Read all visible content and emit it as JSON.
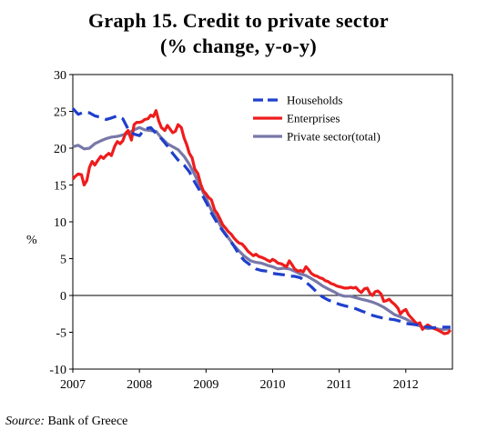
{
  "header": {
    "title": "Graph 15. Credit to private sector",
    "subtitle": "(% change, y-o-y)"
  },
  "footer": {
    "source_label": "Source:",
    "source_text": "Bank of Greece"
  },
  "chart_data": {
    "type": "line",
    "title": "Graph 15. Credit to private sector",
    "subtitle": "(% change, y-o-y)",
    "xlabel": "",
    "ylabel": "%",
    "ylim": [
      -10,
      30
    ],
    "xlim": [
      2007.0,
      2012.7
    ],
    "yticks": [
      -10,
      -5,
      0,
      5,
      10,
      15,
      20,
      25,
      30
    ],
    "xticks": [
      "2007",
      "2008",
      "2009",
      "2010",
      "2011",
      "2012"
    ],
    "grid": false,
    "zero_line": true,
    "legend_position": "top-right",
    "series": [
      {
        "name": "Households",
        "color": "#1f3fcc",
        "style": "dashed",
        "points": [
          [
            2007.0,
            25.4
          ],
          [
            2007.08,
            24.6
          ],
          [
            2007.17,
            24.9
          ],
          [
            2007.25,
            24.8
          ],
          [
            2007.33,
            24.4
          ],
          [
            2007.42,
            24.2
          ],
          [
            2007.5,
            23.9
          ],
          [
            2007.58,
            24.1
          ],
          [
            2007.67,
            24.4
          ],
          [
            2007.75,
            24.0
          ],
          [
            2007.83,
            22.6
          ],
          [
            2007.92,
            21.9
          ],
          [
            2008.0,
            21.7
          ],
          [
            2008.08,
            22.6
          ],
          [
            2008.17,
            22.8
          ],
          [
            2008.25,
            22.0
          ],
          [
            2008.33,
            21.3
          ],
          [
            2008.42,
            20.3
          ],
          [
            2008.5,
            19.3
          ],
          [
            2008.58,
            18.4
          ],
          [
            2008.67,
            17.7
          ],
          [
            2008.75,
            16.8
          ],
          [
            2008.83,
            15.4
          ],
          [
            2008.92,
            14.0
          ],
          [
            2009.0,
            12.7
          ],
          [
            2009.08,
            11.2
          ],
          [
            2009.17,
            9.8
          ],
          [
            2009.25,
            8.8
          ],
          [
            2009.33,
            7.8
          ],
          [
            2009.42,
            6.7
          ],
          [
            2009.5,
            5.5
          ],
          [
            2009.58,
            4.7
          ],
          [
            2009.67,
            4.1
          ],
          [
            2009.75,
            3.6
          ],
          [
            2009.83,
            3.4
          ],
          [
            2009.92,
            3.3
          ],
          [
            2010.0,
            3.0
          ],
          [
            2010.08,
            2.9
          ],
          [
            2010.17,
            2.8
          ],
          [
            2010.25,
            2.6
          ],
          [
            2010.33,
            2.6
          ],
          [
            2010.42,
            2.4
          ],
          [
            2010.5,
            1.8
          ],
          [
            2010.58,
            1.2
          ],
          [
            2010.67,
            0.4
          ],
          [
            2010.75,
            -0.2
          ],
          [
            2010.83,
            -0.6
          ],
          [
            2010.92,
            -0.9
          ],
          [
            2011.0,
            -1.2
          ],
          [
            2011.08,
            -1.4
          ],
          [
            2011.17,
            -1.6
          ],
          [
            2011.25,
            -1.8
          ],
          [
            2011.33,
            -2.1
          ],
          [
            2011.42,
            -2.4
          ],
          [
            2011.5,
            -2.7
          ],
          [
            2011.58,
            -2.9
          ],
          [
            2011.67,
            -3.1
          ],
          [
            2011.75,
            -3.2
          ],
          [
            2011.83,
            -3.3
          ],
          [
            2011.92,
            -3.5
          ],
          [
            2012.0,
            -3.8
          ],
          [
            2012.08,
            -3.9
          ],
          [
            2012.17,
            -4.0
          ],
          [
            2012.25,
            -4.2
          ],
          [
            2012.33,
            -4.3
          ],
          [
            2012.42,
            -4.4
          ],
          [
            2012.5,
            -4.3
          ],
          [
            2012.58,
            -4.3
          ],
          [
            2012.67,
            -4.3
          ]
        ]
      },
      {
        "name": "Enterprises",
        "color": "#ee1c1c",
        "style": "solid",
        "points": [
          [
            2007.0,
            15.8
          ],
          [
            2007.04,
            16.2
          ],
          [
            2007.08,
            16.5
          ],
          [
            2007.13,
            16.4
          ],
          [
            2007.17,
            15.0
          ],
          [
            2007.21,
            15.6
          ],
          [
            2007.25,
            17.4
          ],
          [
            2007.29,
            18.2
          ],
          [
            2007.33,
            17.7
          ],
          [
            2007.38,
            18.4
          ],
          [
            2007.42,
            18.9
          ],
          [
            2007.46,
            18.6
          ],
          [
            2007.5,
            19.0
          ],
          [
            2007.54,
            19.3
          ],
          [
            2007.58,
            19.0
          ],
          [
            2007.63,
            20.3
          ],
          [
            2007.67,
            20.9
          ],
          [
            2007.71,
            20.6
          ],
          [
            2007.75,
            21.0
          ],
          [
            2007.79,
            22.0
          ],
          [
            2007.83,
            22.4
          ],
          [
            2007.88,
            21.1
          ],
          [
            2007.92,
            23.2
          ],
          [
            2007.96,
            23.5
          ],
          [
            2008.0,
            23.5
          ],
          [
            2008.04,
            23.6
          ],
          [
            2008.08,
            23.9
          ],
          [
            2008.13,
            24.0
          ],
          [
            2008.17,
            24.5
          ],
          [
            2008.21,
            24.3
          ],
          [
            2008.25,
            25.1
          ],
          [
            2008.29,
            23.7
          ],
          [
            2008.33,
            22.8
          ],
          [
            2008.38,
            22.4
          ],
          [
            2008.42,
            23.1
          ],
          [
            2008.46,
            22.6
          ],
          [
            2008.5,
            22.1
          ],
          [
            2008.54,
            22.3
          ],
          [
            2008.58,
            23.2
          ],
          [
            2008.63,
            22.8
          ],
          [
            2008.67,
            21.4
          ],
          [
            2008.71,
            20.5
          ],
          [
            2008.75,
            19.3
          ],
          [
            2008.79,
            18.7
          ],
          [
            2008.83,
            17.2
          ],
          [
            2008.88,
            16.5
          ],
          [
            2008.92,
            15.1
          ],
          [
            2008.96,
            14.2
          ],
          [
            2009.0,
            13.8
          ],
          [
            2009.04,
            13.3
          ],
          [
            2009.08,
            13.0
          ],
          [
            2009.13,
            11.6
          ],
          [
            2009.17,
            11.1
          ],
          [
            2009.21,
            10.4
          ],
          [
            2009.25,
            9.6
          ],
          [
            2009.29,
            9.2
          ],
          [
            2009.33,
            8.7
          ],
          [
            2009.38,
            8.3
          ],
          [
            2009.42,
            7.8
          ],
          [
            2009.46,
            7.4
          ],
          [
            2009.5,
            7.1
          ],
          [
            2009.54,
            7.0
          ],
          [
            2009.58,
            6.6
          ],
          [
            2009.63,
            6.0
          ],
          [
            2009.67,
            5.7
          ],
          [
            2009.71,
            5.4
          ],
          [
            2009.75,
            5.6
          ],
          [
            2009.79,
            5.3
          ],
          [
            2009.83,
            5.2
          ],
          [
            2009.88,
            5.0
          ],
          [
            2009.92,
            4.8
          ],
          [
            2009.96,
            4.6
          ],
          [
            2010.0,
            4.9
          ],
          [
            2010.04,
            4.7
          ],
          [
            2010.08,
            4.4
          ],
          [
            2010.13,
            4.3
          ],
          [
            2010.17,
            4.1
          ],
          [
            2010.21,
            3.9
          ],
          [
            2010.25,
            4.7
          ],
          [
            2010.29,
            4.2
          ],
          [
            2010.33,
            3.6
          ],
          [
            2010.38,
            3.3
          ],
          [
            2010.42,
            3.4
          ],
          [
            2010.46,
            3.2
          ],
          [
            2010.5,
            3.9
          ],
          [
            2010.54,
            3.5
          ],
          [
            2010.58,
            3.0
          ],
          [
            2010.63,
            2.7
          ],
          [
            2010.67,
            2.6
          ],
          [
            2010.71,
            2.4
          ],
          [
            2010.75,
            2.3
          ],
          [
            2010.79,
            2.0
          ],
          [
            2010.83,
            1.9
          ],
          [
            2010.88,
            1.6
          ],
          [
            2010.92,
            1.5
          ],
          [
            2010.96,
            1.3
          ],
          [
            2011.0,
            1.2
          ],
          [
            2011.04,
            1.1
          ],
          [
            2011.08,
            1.0
          ],
          [
            2011.13,
            1.0
          ],
          [
            2011.17,
            1.1
          ],
          [
            2011.21,
            1.0
          ],
          [
            2011.25,
            1.1
          ],
          [
            2011.29,
            0.7
          ],
          [
            2011.33,
            0.4
          ],
          [
            2011.38,
            0.9
          ],
          [
            2011.42,
            1.0
          ],
          [
            2011.46,
            0.3
          ],
          [
            2011.5,
            0.0
          ],
          [
            2011.54,
            0.5
          ],
          [
            2011.58,
            0.6
          ],
          [
            2011.63,
            0.2
          ],
          [
            2011.67,
            -0.8
          ],
          [
            2011.71,
            -0.7
          ],
          [
            2011.75,
            -0.5
          ],
          [
            2011.79,
            -0.9
          ],
          [
            2011.83,
            -1.2
          ],
          [
            2011.88,
            -1.7
          ],
          [
            2011.92,
            -2.5
          ],
          [
            2011.96,
            -2.1
          ],
          [
            2012.0,
            -1.9
          ],
          [
            2012.04,
            -2.6
          ],
          [
            2012.08,
            -3.0
          ],
          [
            2012.13,
            -3.5
          ],
          [
            2012.17,
            -3.9
          ],
          [
            2012.21,
            -3.7
          ],
          [
            2012.25,
            -4.6
          ],
          [
            2012.29,
            -4.3
          ],
          [
            2012.33,
            -4.0
          ],
          [
            2012.38,
            -4.3
          ],
          [
            2012.42,
            -4.5
          ],
          [
            2012.46,
            -4.6
          ],
          [
            2012.5,
            -4.8
          ],
          [
            2012.54,
            -5.0
          ],
          [
            2012.58,
            -5.2
          ],
          [
            2012.63,
            -5.1
          ],
          [
            2012.67,
            -4.7
          ]
        ]
      },
      {
        "name": "Private sector(total)",
        "color": "#7878a8",
        "style": "solid",
        "points": [
          [
            2007.0,
            20.2
          ],
          [
            2007.08,
            20.4
          ],
          [
            2007.17,
            19.9
          ],
          [
            2007.25,
            20.0
          ],
          [
            2007.33,
            20.6
          ],
          [
            2007.42,
            21.0
          ],
          [
            2007.5,
            21.3
          ],
          [
            2007.58,
            21.5
          ],
          [
            2007.67,
            21.6
          ],
          [
            2007.75,
            21.8
          ],
          [
            2007.83,
            22.0
          ],
          [
            2007.92,
            22.5
          ],
          [
            2008.0,
            22.8
          ],
          [
            2008.08,
            22.5
          ],
          [
            2008.17,
            22.4
          ],
          [
            2008.25,
            22.3
          ],
          [
            2008.33,
            21.4
          ],
          [
            2008.42,
            20.6
          ],
          [
            2008.5,
            20.2
          ],
          [
            2008.58,
            19.8
          ],
          [
            2008.67,
            18.9
          ],
          [
            2008.75,
            17.8
          ],
          [
            2008.83,
            16.4
          ],
          [
            2008.92,
            14.7
          ],
          [
            2009.0,
            13.2
          ],
          [
            2009.08,
            11.6
          ],
          [
            2009.17,
            10.3
          ],
          [
            2009.25,
            8.9
          ],
          [
            2009.33,
            7.9
          ],
          [
            2009.42,
            6.8
          ],
          [
            2009.5,
            6.0
          ],
          [
            2009.58,
            5.3
          ],
          [
            2009.67,
            4.7
          ],
          [
            2009.75,
            4.5
          ],
          [
            2009.83,
            4.4
          ],
          [
            2009.92,
            4.1
          ],
          [
            2010.0,
            3.9
          ],
          [
            2010.08,
            3.6
          ],
          [
            2010.17,
            3.7
          ],
          [
            2010.25,
            3.6
          ],
          [
            2010.33,
            3.3
          ],
          [
            2010.42,
            2.9
          ],
          [
            2010.5,
            2.7
          ],
          [
            2010.58,
            2.3
          ],
          [
            2010.67,
            1.8
          ],
          [
            2010.75,
            1.3
          ],
          [
            2010.83,
            0.9
          ],
          [
            2010.92,
            0.5
          ],
          [
            2011.0,
            0.1
          ],
          [
            2011.08,
            -0.1
          ],
          [
            2011.17,
            -0.1
          ],
          [
            2011.25,
            -0.3
          ],
          [
            2011.33,
            -0.5
          ],
          [
            2011.42,
            -0.7
          ],
          [
            2011.5,
            -0.9
          ],
          [
            2011.58,
            -1.2
          ],
          [
            2011.67,
            -1.6
          ],
          [
            2011.75,
            -2.1
          ],
          [
            2011.83,
            -2.6
          ],
          [
            2011.92,
            -2.9
          ],
          [
            2012.0,
            -3.2
          ],
          [
            2012.08,
            -3.6
          ],
          [
            2012.17,
            -4.0
          ],
          [
            2012.25,
            -4.3
          ],
          [
            2012.33,
            -4.5
          ],
          [
            2012.42,
            -4.4
          ],
          [
            2012.5,
            -4.6
          ],
          [
            2012.58,
            -4.6
          ],
          [
            2012.67,
            -4.5
          ]
        ]
      }
    ]
  }
}
